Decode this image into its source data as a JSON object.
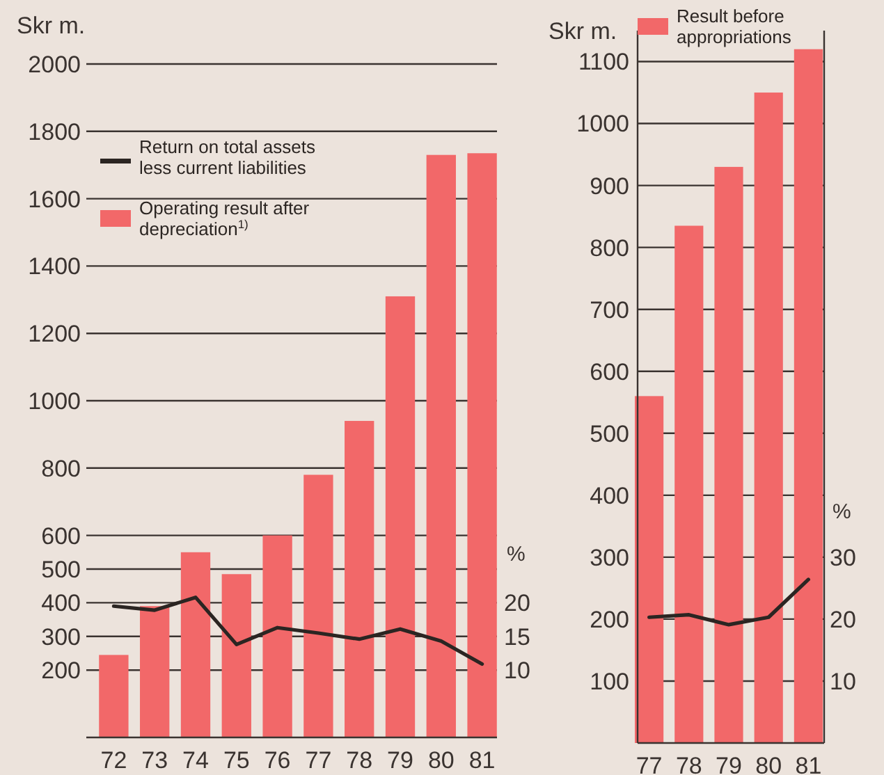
{
  "chart_data": [
    {
      "type": "bar",
      "categories": [
        "72",
        "73",
        "74",
        "75",
        "76",
        "77",
        "78",
        "79",
        "80",
        "81"
      ],
      "ylabel": "Skr m.",
      "y2label": "%",
      "ylim": [
        0,
        2000
      ],
      "yticks": [
        200,
        300,
        400,
        500,
        600,
        800,
        1000,
        1200,
        1400,
        1600,
        1800,
        2000
      ],
      "y2lim": [
        0,
        100
      ],
      "y2ticks": [
        10,
        15,
        20
      ],
      "grid": "y",
      "legend": "top left",
      "marker": "none",
      "series": [
        {
          "name": "Return on total assets less current liabilities",
          "type": "line",
          "axis": "y2",
          "color": "#2b2522",
          "values": [
            19.5,
            18.9,
            20.8,
            13.8,
            16.3,
            15.5,
            14.6,
            16.1,
            14.3,
            10.9
          ]
        },
        {
          "name": "Operating result after depreciation$^{1)}$",
          "color": "#f26869",
          "values": [
            245,
            390,
            550,
            485,
            600,
            780,
            940,
            1310,
            1730,
            1735
          ]
        }
      ]
    },
    {
      "type": "bar",
      "categories": [
        "77",
        "78",
        "79",
        "80",
        "81"
      ],
      "ylabel": "Skr m.",
      "y2label": "%",
      "ylim": [
        0,
        1150
      ],
      "yticks": [
        100,
        200,
        300,
        400,
        500,
        600,
        700,
        800,
        900,
        1000,
        1100
      ],
      "y2lim": [
        0,
        115
      ],
      "y2ticks": [
        10,
        20,
        30
      ],
      "grid": "y",
      "legend": "top",
      "marker": "none",
      "series": [
        {
          "name": "Result before appropriations",
          "color": "#f26869",
          "values": [
            560,
            835,
            930,
            1050,
            1120
          ]
        },
        {
          "type": "line",
          "axis": "y2",
          "color": "#2b2522",
          "values": [
            20.3,
            20.7,
            19.1,
            20.3,
            26.4
          ]
        }
      ]
    }
  ]
}
